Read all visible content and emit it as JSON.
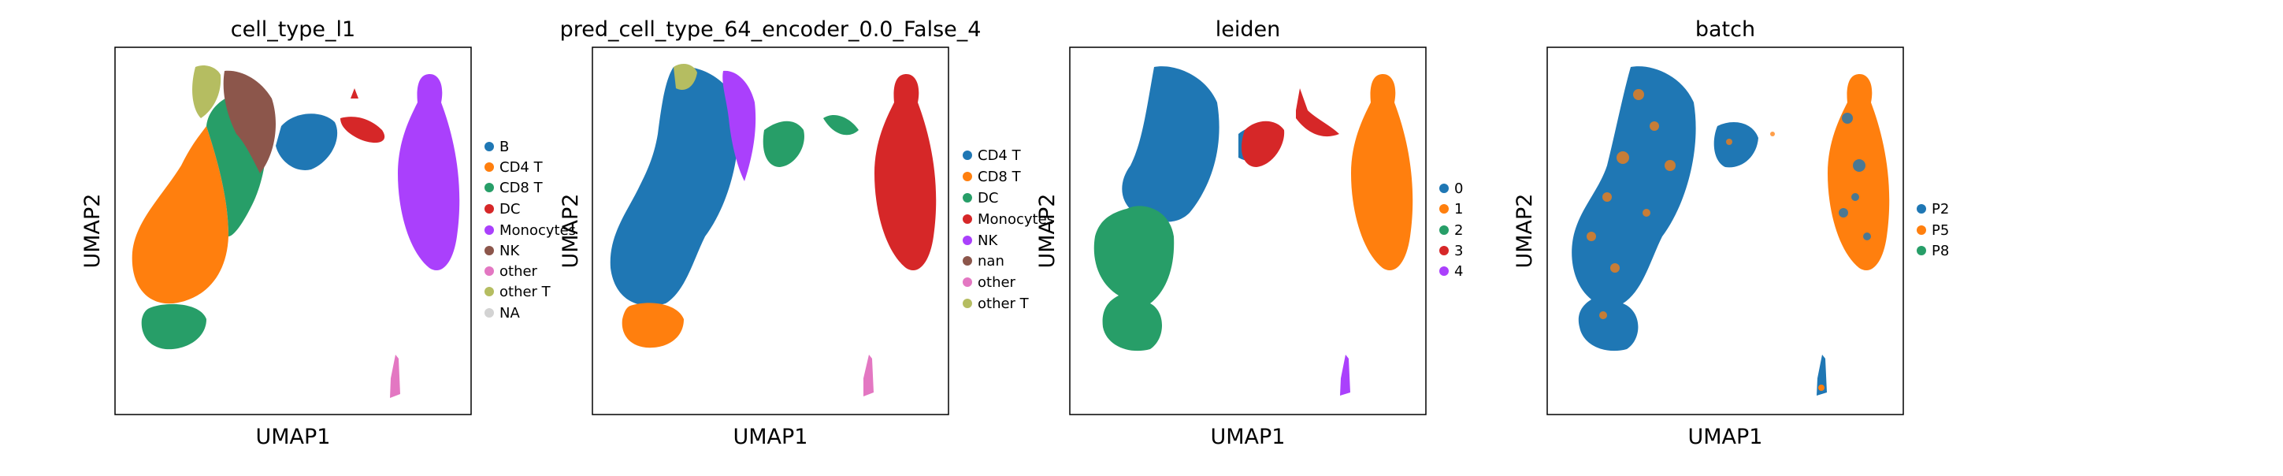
{
  "panels": [
    {
      "title": "cell_type_l1",
      "xlabel": "UMAP1",
      "ylabel": "UMAP2",
      "legend": [
        {
          "label": "B",
          "color": "#1f77b4"
        },
        {
          "label": "CD4 T",
          "color": "#ff7f0e"
        },
        {
          "label": "CD8 T",
          "color": "#279e68"
        },
        {
          "label": "DC",
          "color": "#d62728"
        },
        {
          "label": "Monocytes",
          "color": "#aa40fc"
        },
        {
          "label": "NK",
          "color": "#8c564b"
        },
        {
          "label": "other",
          "color": "#e377c2"
        },
        {
          "label": "other T",
          "color": "#b5bd61"
        },
        {
          "label": "NA",
          "color": "#d3d3d3"
        }
      ]
    },
    {
      "title": "pred_cell_type_64_encoder_0.0_False_4",
      "xlabel": "UMAP1",
      "ylabel": "UMAP2",
      "legend": [
        {
          "label": "CD4 T",
          "color": "#1f77b4"
        },
        {
          "label": "CD8 T",
          "color": "#ff7f0e"
        },
        {
          "label": "DC",
          "color": "#279e68"
        },
        {
          "label": "Monocytes",
          "color": "#d62728"
        },
        {
          "label": "NK",
          "color": "#aa40fc"
        },
        {
          "label": "nan",
          "color": "#8c564b"
        },
        {
          "label": "other",
          "color": "#e377c2"
        },
        {
          "label": "other T",
          "color": "#b5bd61"
        }
      ]
    },
    {
      "title": "leiden",
      "xlabel": "UMAP1",
      "ylabel": "UMAP2",
      "legend": [
        {
          "label": "0",
          "color": "#1f77b4"
        },
        {
          "label": "1",
          "color": "#ff7f0e"
        },
        {
          "label": "2",
          "color": "#279e68"
        },
        {
          "label": "3",
          "color": "#d62728"
        },
        {
          "label": "4",
          "color": "#aa40fc"
        }
      ]
    },
    {
      "title": "batch",
      "xlabel": "UMAP1",
      "ylabel": "UMAP2",
      "legend": [
        {
          "label": "P2",
          "color": "#1f77b4"
        },
        {
          "label": "P5",
          "color": "#ff7f0e"
        },
        {
          "label": "P8",
          "color": "#279e68"
        }
      ]
    }
  ],
  "chart_data": [
    {
      "type": "scatter",
      "title": "cell_type_l1",
      "xlabel": "UMAP1",
      "ylabel": "UMAP2",
      "categories": [
        "B",
        "CD4 T",
        "CD8 T",
        "DC",
        "Monocytes",
        "NK",
        "other",
        "other T",
        "NA"
      ],
      "ticks": "none"
    },
    {
      "type": "scatter",
      "title": "pred_cell_type_64_encoder_0.0_False_4",
      "xlabel": "UMAP1",
      "ylabel": "UMAP2",
      "categories": [
        "CD4 T",
        "CD8 T",
        "DC",
        "Monocytes",
        "NK",
        "nan",
        "other",
        "other T"
      ],
      "ticks": "none"
    },
    {
      "type": "scatter",
      "title": "leiden",
      "xlabel": "UMAP1",
      "ylabel": "UMAP2",
      "categories": [
        "0",
        "1",
        "2",
        "3",
        "4"
      ],
      "ticks": "none"
    },
    {
      "type": "scatter",
      "title": "batch",
      "xlabel": "UMAP1",
      "ylabel": "UMAP2",
      "categories": [
        "P2",
        "P5",
        "P8"
      ],
      "ticks": "none"
    }
  ]
}
